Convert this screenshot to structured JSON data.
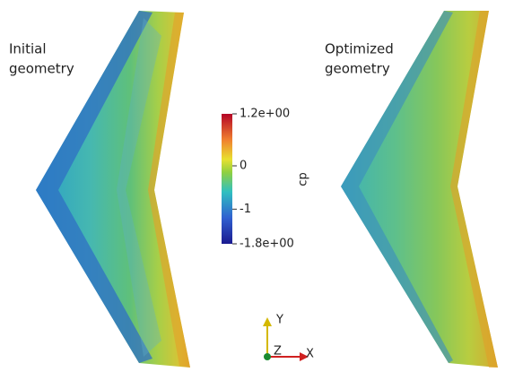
{
  "labels": {
    "initial": [
      "Initial",
      "geometry"
    ],
    "optimized": [
      "Optimized",
      "geometry"
    ]
  },
  "colorbar": {
    "title": "cp",
    "range": [
      -1.8,
      1.2
    ],
    "ticks": [
      {
        "value": 1.2,
        "label": "1.2e+00"
      },
      0,
      -1,
      {
        "value": -1.8,
        "label": "-1.8e+00"
      }
    ]
  },
  "axes": {
    "x": "X",
    "y": "Y",
    "z": "Z"
  }
}
